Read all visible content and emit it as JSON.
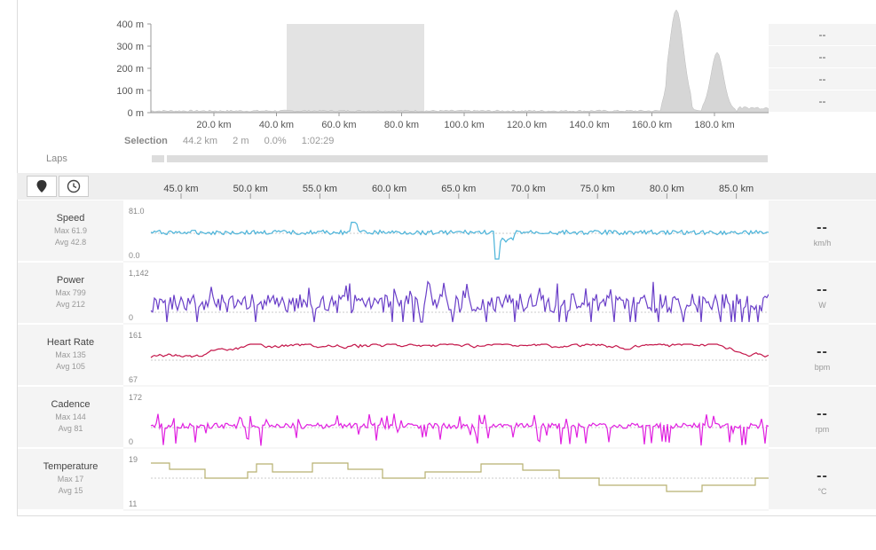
{
  "overview": {
    "y_ticks": [
      "400 m",
      "300 m",
      "200 m",
      "100 m",
      "0 m"
    ],
    "x_ticks": [
      "20.0 km",
      "40.0 km",
      "60.0 km",
      "80.0 km",
      "100.0 km",
      "120.0 km",
      "140.0 km",
      "160.0 km",
      "180.0 km"
    ],
    "selection_range_km": [
      43.5,
      87.7
    ],
    "right_stats": [
      "--",
      "--",
      "--",
      "--"
    ]
  },
  "selection": {
    "label": "Selection",
    "distance": "44.2 km",
    "elevation": "2 m",
    "grade": "0.0%",
    "duration": "1:02:29"
  },
  "laps": {
    "label": "Laps"
  },
  "toolbar": {
    "map_icon": "map-pin-icon",
    "time_icon": "clock-icon"
  },
  "detail_axis": {
    "x_ticks": [
      "45.0 km",
      "50.0 km",
      "55.0 km",
      "60.0 km",
      "65.0 km",
      "70.0 km",
      "75.0 km",
      "80.0 km",
      "85.0 km"
    ]
  },
  "metrics": [
    {
      "name": "Speed",
      "max": "Max 61.9",
      "avg": "Avg 42.8",
      "ymax": "81.0",
      "ymin": "0.0",
      "value": "--",
      "unit": "km/h",
      "color": "#4ab3d9"
    },
    {
      "name": "Power",
      "max": "Max 799",
      "avg": "Avg 212",
      "ymax": "1,142",
      "ymin": "0",
      "value": "--",
      "unit": "W",
      "color": "#6a3fc8"
    },
    {
      "name": "Heart Rate",
      "max": "Max 135",
      "avg": "Avg 105",
      "ymax": "161",
      "ymin": "67",
      "value": "--",
      "unit": "bpm",
      "color": "#c4164a"
    },
    {
      "name": "Cadence",
      "max": "Max 144",
      "avg": "Avg 81",
      "ymax": "172",
      "ymin": "0",
      "value": "--",
      "unit": "rpm",
      "color": "#e020e0"
    },
    {
      "name": "Temperature",
      "max": "Max 17",
      "avg": "Avg 15",
      "ymax": "19",
      "ymin": "11",
      "value": "--",
      "unit": "°C",
      "color": "#b8b070"
    }
  ]
}
